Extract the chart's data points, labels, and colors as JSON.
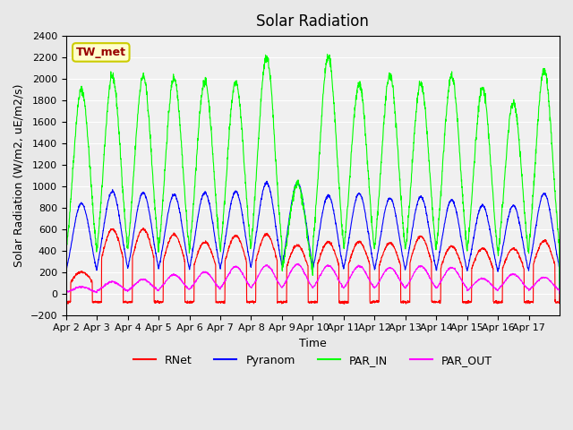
{
  "title": "Solar Radiation",
  "ylabel": "Solar Radiation (W/m2, uE/m2/s)",
  "xlabel": "Time",
  "ylim": [
    -200,
    2400
  ],
  "yticks": [
    -200,
    0,
    200,
    400,
    600,
    800,
    1000,
    1200,
    1400,
    1600,
    1800,
    2000,
    2200,
    2400
  ],
  "xtick_labels": [
    "Apr 2",
    "Apr 3",
    "Apr 4",
    "Apr 5",
    "Apr 6",
    "Apr 7",
    "Apr 8",
    "Apr 9",
    "Apr 10",
    "Apr 11",
    "Apr 12",
    "Apr 13",
    "Apr 14",
    "Apr 15",
    "Apr 16",
    "Apr 17"
  ],
  "n_days": 16,
  "annotation_text": "TW_met",
  "annotation_box_color": "#ffffcc",
  "annotation_text_color": "#990000",
  "bg_color": "#e8e8e8",
  "plot_bg_color": "#f0f0f0",
  "colors": {
    "RNet": "#ff0000",
    "Pyranom": "#0000ff",
    "PAR_IN": "#00ff00",
    "PAR_OUT": "#ff00ff"
  },
  "legend_entries": [
    "RNet",
    "Pyranom",
    "PAR_IN",
    "PAR_OUT"
  ]
}
